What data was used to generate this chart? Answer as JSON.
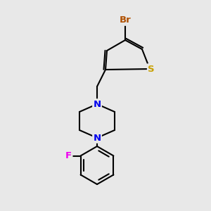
{
  "bg_color": "#e8e8e8",
  "bond_color": "#000000",
  "bond_width": 1.5,
  "atom_colors": {
    "S": "#c8a000",
    "Br": "#b05000",
    "N": "#0000ee",
    "F": "#ee00ee",
    "C": "#000000"
  },
  "font_size": 8.5,
  "figsize": [
    3.0,
    3.0
  ],
  "dpi": 100,
  "xlim": [
    0,
    300
  ],
  "ylim": [
    0,
    300
  ]
}
